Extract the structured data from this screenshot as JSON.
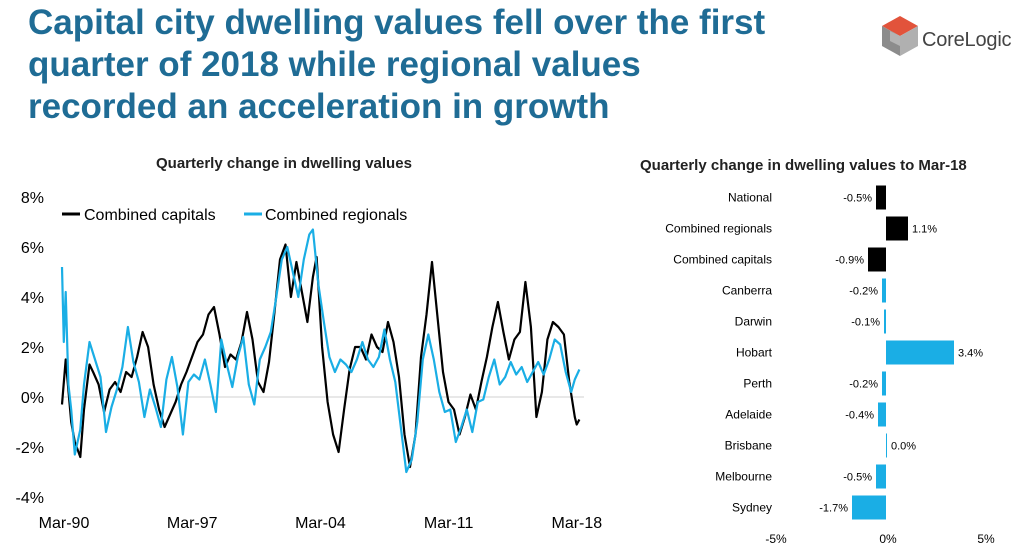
{
  "headline": {
    "line1": "Capital city dwelling values fell over the first",
    "line2": "quarter of 2018 while regional values",
    "line3": "recorded an acceleration in growth"
  },
  "logo": {
    "text": "CoreLogic"
  },
  "colors": {
    "headline": "#1f6c95",
    "capitals": "#000000",
    "regionals": "#1aaee5",
    "logo_red": "#d9412b",
    "logo_grey": "#7a7a7a"
  },
  "chart_data": [
    {
      "type": "line",
      "title": "Quarterly change in dwelling values",
      "xlabel": "",
      "ylabel": "",
      "x_tick_labels": [
        "Mar-90",
        "Mar-97",
        "Mar-04",
        "Mar-11",
        "Mar-18"
      ],
      "y_tick_labels": [
        "8%",
        "6%",
        "4%",
        "2%",
        "0%",
        "-2%",
        "-4%"
      ],
      "ylim": [
        -4,
        8
      ],
      "xlim": [
        1990,
        2018.5
      ],
      "legend": "top-left",
      "series": [
        {
          "name": "Combined capitals",
          "color": "#000000",
          "points": [
            [
              1990.0,
              -0.3
            ],
            [
              1990.2,
              1.5
            ],
            [
              1990.5,
              -1.0
            ],
            [
              1990.7,
              -1.8
            ],
            [
              1991.0,
              -2.4
            ],
            [
              1991.2,
              -0.5
            ],
            [
              1991.5,
              1.3
            ],
            [
              1991.7,
              1.0
            ],
            [
              1992.0,
              0.5
            ],
            [
              1992.3,
              -0.6
            ],
            [
              1992.6,
              0.3
            ],
            [
              1992.9,
              0.6
            ],
            [
              1993.2,
              0.2
            ],
            [
              1993.5,
              1.0
            ],
            [
              1993.8,
              0.8
            ],
            [
              1994.1,
              1.6
            ],
            [
              1994.4,
              2.6
            ],
            [
              1994.7,
              2.0
            ],
            [
              1995.0,
              0.5
            ],
            [
              1995.3,
              -0.5
            ],
            [
              1995.6,
              -1.2
            ],
            [
              1995.9,
              -0.7
            ],
            [
              1996.2,
              -0.2
            ],
            [
              1996.5,
              0.5
            ],
            [
              1996.8,
              1.0
            ],
            [
              1997.1,
              1.6
            ],
            [
              1997.4,
              2.2
            ],
            [
              1997.7,
              2.5
            ],
            [
              1998.0,
              3.3
            ],
            [
              1998.3,
              3.6
            ],
            [
              1998.6,
              2.5
            ],
            [
              1998.9,
              1.2
            ],
            [
              1999.2,
              1.7
            ],
            [
              1999.5,
              1.5
            ],
            [
              1999.8,
              2.2
            ],
            [
              2000.1,
              3.4
            ],
            [
              2000.4,
              2.3
            ],
            [
              2000.7,
              0.6
            ],
            [
              2001.0,
              0.2
            ],
            [
              2001.3,
              1.4
            ],
            [
              2001.6,
              3.4
            ],
            [
              2001.9,
              5.5
            ],
            [
              2002.2,
              6.1
            ],
            [
              2002.5,
              4.0
            ],
            [
              2002.8,
              5.4
            ],
            [
              2003.1,
              4.2
            ],
            [
              2003.4,
              3.0
            ],
            [
              2003.7,
              4.8
            ],
            [
              2003.9,
              5.6
            ],
            [
              2004.2,
              2.0
            ],
            [
              2004.5,
              -0.2
            ],
            [
              2004.8,
              -1.5
            ],
            [
              2005.1,
              -2.2
            ],
            [
              2005.4,
              -0.5
            ],
            [
              2005.7,
              1.1
            ],
            [
              2006.0,
              2.0
            ],
            [
              2006.3,
              2.0
            ],
            [
              2006.6,
              1.5
            ],
            [
              2006.9,
              2.5
            ],
            [
              2007.2,
              2.0
            ],
            [
              2007.5,
              1.8
            ],
            [
              2007.8,
              3.0
            ],
            [
              2008.1,
              2.2
            ],
            [
              2008.4,
              0.8
            ],
            [
              2008.7,
              -1.5
            ],
            [
              2009.0,
              -2.8
            ],
            [
              2009.3,
              -1.5
            ],
            [
              2009.6,
              1.6
            ],
            [
              2009.9,
              3.3
            ],
            [
              2010.2,
              5.4
            ],
            [
              2010.5,
              3.2
            ],
            [
              2010.8,
              1.0
            ],
            [
              2011.1,
              -0.2
            ],
            [
              2011.4,
              -0.5
            ],
            [
              2011.7,
              -1.5
            ],
            [
              2012.0,
              -0.8
            ],
            [
              2012.3,
              0.1
            ],
            [
              2012.6,
              -0.5
            ],
            [
              2012.9,
              0.6
            ],
            [
              2013.2,
              1.6
            ],
            [
              2013.5,
              2.8
            ],
            [
              2013.8,
              3.8
            ],
            [
              2014.1,
              2.6
            ],
            [
              2014.4,
              1.5
            ],
            [
              2014.7,
              2.3
            ],
            [
              2015.0,
              2.6
            ],
            [
              2015.3,
              4.6
            ],
            [
              2015.6,
              2.8
            ],
            [
              2015.9,
              -0.8
            ],
            [
              2016.2,
              0.2
            ],
            [
              2016.5,
              2.3
            ],
            [
              2016.8,
              3.0
            ],
            [
              2017.1,
              2.8
            ],
            [
              2017.4,
              2.5
            ],
            [
              2017.7,
              0.6
            ],
            [
              2018.0,
              -0.8
            ],
            [
              2018.1,
              -1.1
            ],
            [
              2018.25,
              -0.9
            ]
          ]
        },
        {
          "name": "Combined regionals",
          "color": "#1aaee5",
          "points": [
            [
              1990.0,
              5.2
            ],
            [
              1990.1,
              2.2
            ],
            [
              1990.2,
              4.2
            ],
            [
              1990.35,
              0.5
            ],
            [
              1990.5,
              -0.5
            ],
            [
              1990.7,
              -2.3
            ],
            [
              1991.0,
              -1.3
            ],
            [
              1991.2,
              0.5
            ],
            [
              1991.5,
              2.2
            ],
            [
              1991.8,
              1.5
            ],
            [
              1992.1,
              0.8
            ],
            [
              1992.4,
              -1.4
            ],
            [
              1992.7,
              -0.4
            ],
            [
              1993.0,
              0.3
            ],
            [
              1993.3,
              1.2
            ],
            [
              1993.6,
              2.8
            ],
            [
              1993.9,
              1.4
            ],
            [
              1994.2,
              0.6
            ],
            [
              1994.5,
              -0.8
            ],
            [
              1994.8,
              0.3
            ],
            [
              1995.1,
              -0.4
            ],
            [
              1995.4,
              -1.2
            ],
            [
              1995.7,
              0.7
            ],
            [
              1996.0,
              1.6
            ],
            [
              1996.3,
              0.4
            ],
            [
              1996.6,
              -1.5
            ],
            [
              1996.9,
              0.6
            ],
            [
              1997.2,
              0.9
            ],
            [
              1997.5,
              0.7
            ],
            [
              1997.8,
              1.5
            ],
            [
              1998.1,
              0.5
            ],
            [
              1998.4,
              -0.6
            ],
            [
              1998.7,
              2.3
            ],
            [
              1999.0,
              1.3
            ],
            [
              1999.3,
              0.4
            ],
            [
              1999.6,
              1.6
            ],
            [
              1999.9,
              2.4
            ],
            [
              2000.2,
              0.5
            ],
            [
              2000.5,
              -0.3
            ],
            [
              2000.8,
              1.5
            ],
            [
              2001.1,
              2.0
            ],
            [
              2001.4,
              2.6
            ],
            [
              2001.7,
              4.0
            ],
            [
              2002.0,
              5.5
            ],
            [
              2002.3,
              6.0
            ],
            [
              2002.6,
              5.0
            ],
            [
              2002.9,
              4.0
            ],
            [
              2003.2,
              5.5
            ],
            [
              2003.5,
              6.5
            ],
            [
              2003.7,
              6.7
            ],
            [
              2004.0,
              4.5
            ],
            [
              2004.3,
              3.0
            ],
            [
              2004.6,
              1.6
            ],
            [
              2004.9,
              1.0
            ],
            [
              2005.2,
              1.5
            ],
            [
              2005.5,
              1.3
            ],
            [
              2005.8,
              1.0
            ],
            [
              2006.1,
              1.5
            ],
            [
              2006.4,
              2.2
            ],
            [
              2006.7,
              1.5
            ],
            [
              2007.0,
              1.2
            ],
            [
              2007.3,
              1.6
            ],
            [
              2007.6,
              2.7
            ],
            [
              2007.9,
              1.5
            ],
            [
              2008.2,
              0.6
            ],
            [
              2008.5,
              -1.2
            ],
            [
              2008.8,
              -3.0
            ],
            [
              2009.1,
              -2.5
            ],
            [
              2009.4,
              -1.0
            ],
            [
              2009.7,
              1.5
            ],
            [
              2010.0,
              2.5
            ],
            [
              2010.3,
              1.5
            ],
            [
              2010.6,
              0.2
            ],
            [
              2010.9,
              -0.6
            ],
            [
              2011.2,
              -0.5
            ],
            [
              2011.5,
              -1.8
            ],
            [
              2011.8,
              -1.2
            ],
            [
              2012.1,
              -0.5
            ],
            [
              2012.4,
              -1.4
            ],
            [
              2012.7,
              -0.2
            ],
            [
              2013.0,
              -0.1
            ],
            [
              2013.3,
              0.8
            ],
            [
              2013.6,
              1.5
            ],
            [
              2013.9,
              0.5
            ],
            [
              2014.2,
              0.8
            ],
            [
              2014.5,
              1.4
            ],
            [
              2014.8,
              0.9
            ],
            [
              2015.1,
              1.2
            ],
            [
              2015.4,
              0.6
            ],
            [
              2015.7,
              1.0
            ],
            [
              2016.0,
              1.4
            ],
            [
              2016.3,
              0.9
            ],
            [
              2016.6,
              1.5
            ],
            [
              2016.9,
              2.3
            ],
            [
              2017.2,
              2.1
            ],
            [
              2017.5,
              1.0
            ],
            [
              2017.8,
              0.2
            ],
            [
              2018.0,
              0.7
            ],
            [
              2018.25,
              1.1
            ]
          ]
        }
      ]
    },
    {
      "type": "bar",
      "orientation": "horizontal",
      "title": "Quarterly change in dwelling values to Mar-18",
      "categories": [
        "National",
        "Combined regionals",
        "Combined capitals",
        "Canberra",
        "Darwin",
        "Hobart",
        "Perth",
        "Adelaide",
        "Brisbane",
        "Melbourne",
        "Sydney"
      ],
      "values": [
        -0.5,
        1.1,
        -0.9,
        -0.2,
        -0.1,
        3.4,
        -0.2,
        -0.4,
        0.0,
        -0.5,
        -1.7
      ],
      "value_labels": [
        "-0.5%",
        "1.1%",
        "-0.9%",
        "-0.2%",
        "-0.1%",
        "3.4%",
        "-0.2%",
        "-0.4%",
        "0.0%",
        "-0.5%",
        "-1.7%"
      ],
      "colors": [
        "#000000",
        "#000000",
        "#000000",
        "#1aaee5",
        "#1aaee5",
        "#1aaee5",
        "#1aaee5",
        "#1aaee5",
        "#1aaee5",
        "#1aaee5",
        "#1aaee5"
      ],
      "x_tick_labels": [
        "-5%",
        "0%",
        "5%"
      ],
      "xlim": [
        -5,
        5
      ]
    }
  ]
}
